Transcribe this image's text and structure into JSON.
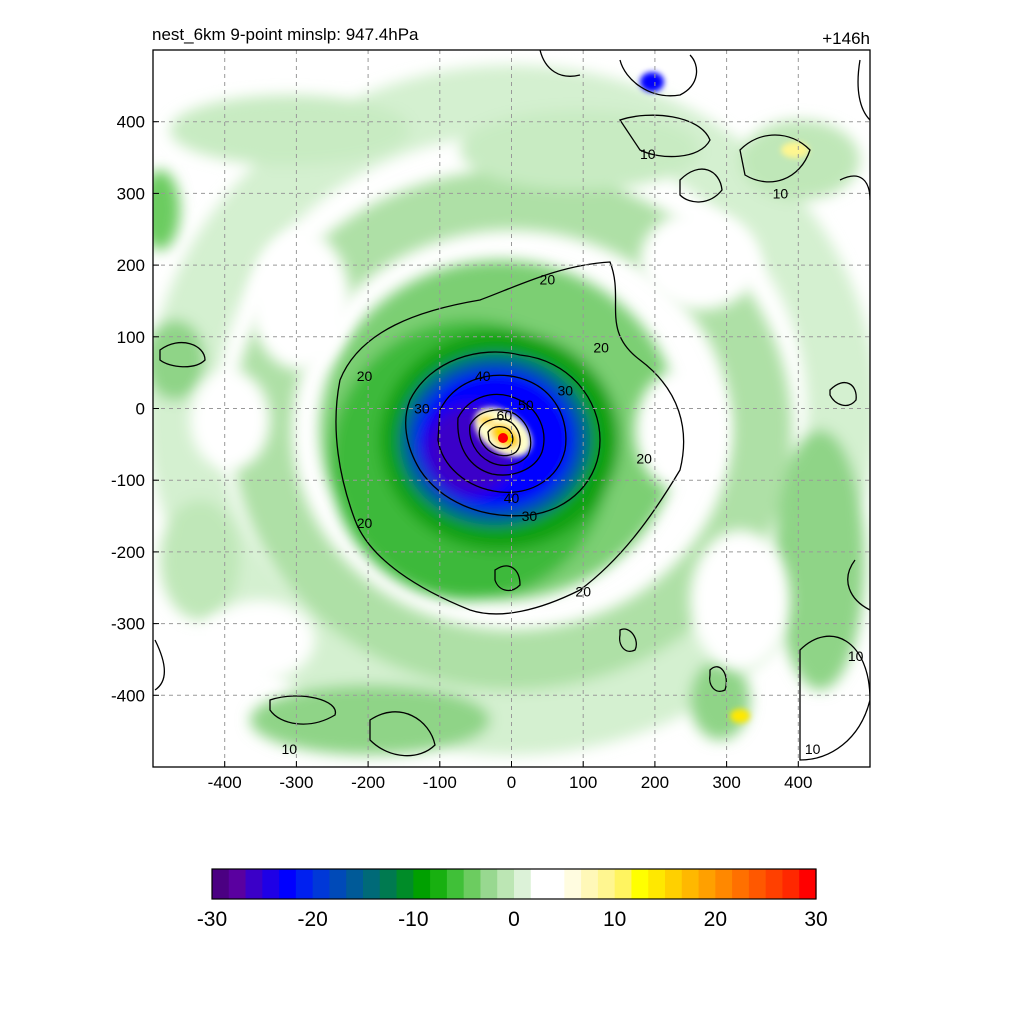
{
  "title_left": "nest_6km  9-point minslp: 947.4hPa",
  "title_right": "+146h",
  "chart_data": {
    "type": "heatmap",
    "title": "nest_6km  9-point minslp: 947.4hPa",
    "time_label": "+146h",
    "x_range": [
      -500,
      500
    ],
    "y_range": [
      -500,
      500
    ],
    "x_ticks": [
      -400,
      -300,
      -200,
      -100,
      0,
      100,
      200,
      300,
      400
    ],
    "y_ticks": [
      400,
      300,
      200,
      100,
      0,
      -100,
      -200,
      -300,
      -400
    ],
    "grid": true,
    "contour_levels": [
      10,
      20,
      30,
      40,
      50,
      60
    ],
    "contour_labels": [
      {
        "text": "20",
        "x": -205,
        "y": 45
      },
      {
        "text": "20",
        "x": -205,
        "y": -160
      },
      {
        "text": "20",
        "x": 50,
        "y": 180
      },
      {
        "text": "20",
        "x": 125,
        "y": 85
      },
      {
        "text": "20",
        "x": 185,
        "y": -70
      },
      {
        "text": "20",
        "x": 100,
        "y": -255
      },
      {
        "text": "30",
        "x": -125,
        "y": 0
      },
      {
        "text": "30",
        "x": 75,
        "y": 25
      },
      {
        "text": "30",
        "x": 25,
        "y": -150
      },
      {
        "text": "40",
        "x": -40,
        "y": 45
      },
      {
        "text": "40",
        "x": 0,
        "y": -125
      },
      {
        "text": "50",
        "x": 20,
        "y": 5
      },
      {
        "text": "60",
        "x": -10,
        "y": -10
      },
      {
        "text": "10",
        "x": 190,
        "y": 355
      },
      {
        "text": "10",
        "x": 375,
        "y": 300
      },
      {
        "text": "10",
        "x": 480,
        "y": -345
      },
      {
        "text": "10",
        "x": 420,
        "y": -475
      },
      {
        "text": "10",
        "x": -310,
        "y": -475
      }
    ],
    "colorbar": {
      "ticks": [
        -30,
        -20,
        -10,
        0,
        10,
        20,
        30
      ],
      "min": -30,
      "max": 30,
      "colors": [
        "#4b0082",
        "#5a00a0",
        "#3b00c8",
        "#1f00e6",
        "#0000ff",
        "#0020f0",
        "#0038d8",
        "#004ab8",
        "#005a98",
        "#006a78",
        "#007a50",
        "#008c28",
        "#00a000",
        "#18b010",
        "#40c038",
        "#6ccc60",
        "#98d890",
        "#bce6b4",
        "#dcf2d8",
        "#ffffff",
        "#ffffff",
        "#fffce0",
        "#fff8b8",
        "#fff690",
        "#fff460",
        "#ffff00",
        "#ffe800",
        "#ffd000",
        "#ffb800",
        "#ffa000",
        "#ff8800",
        "#ff7000",
        "#ff5800",
        "#ff4000",
        "#ff2800",
        "#ff0000"
      ]
    },
    "center_marker": {
      "x": -10,
      "y": -40,
      "color": "#ff0000"
    }
  }
}
